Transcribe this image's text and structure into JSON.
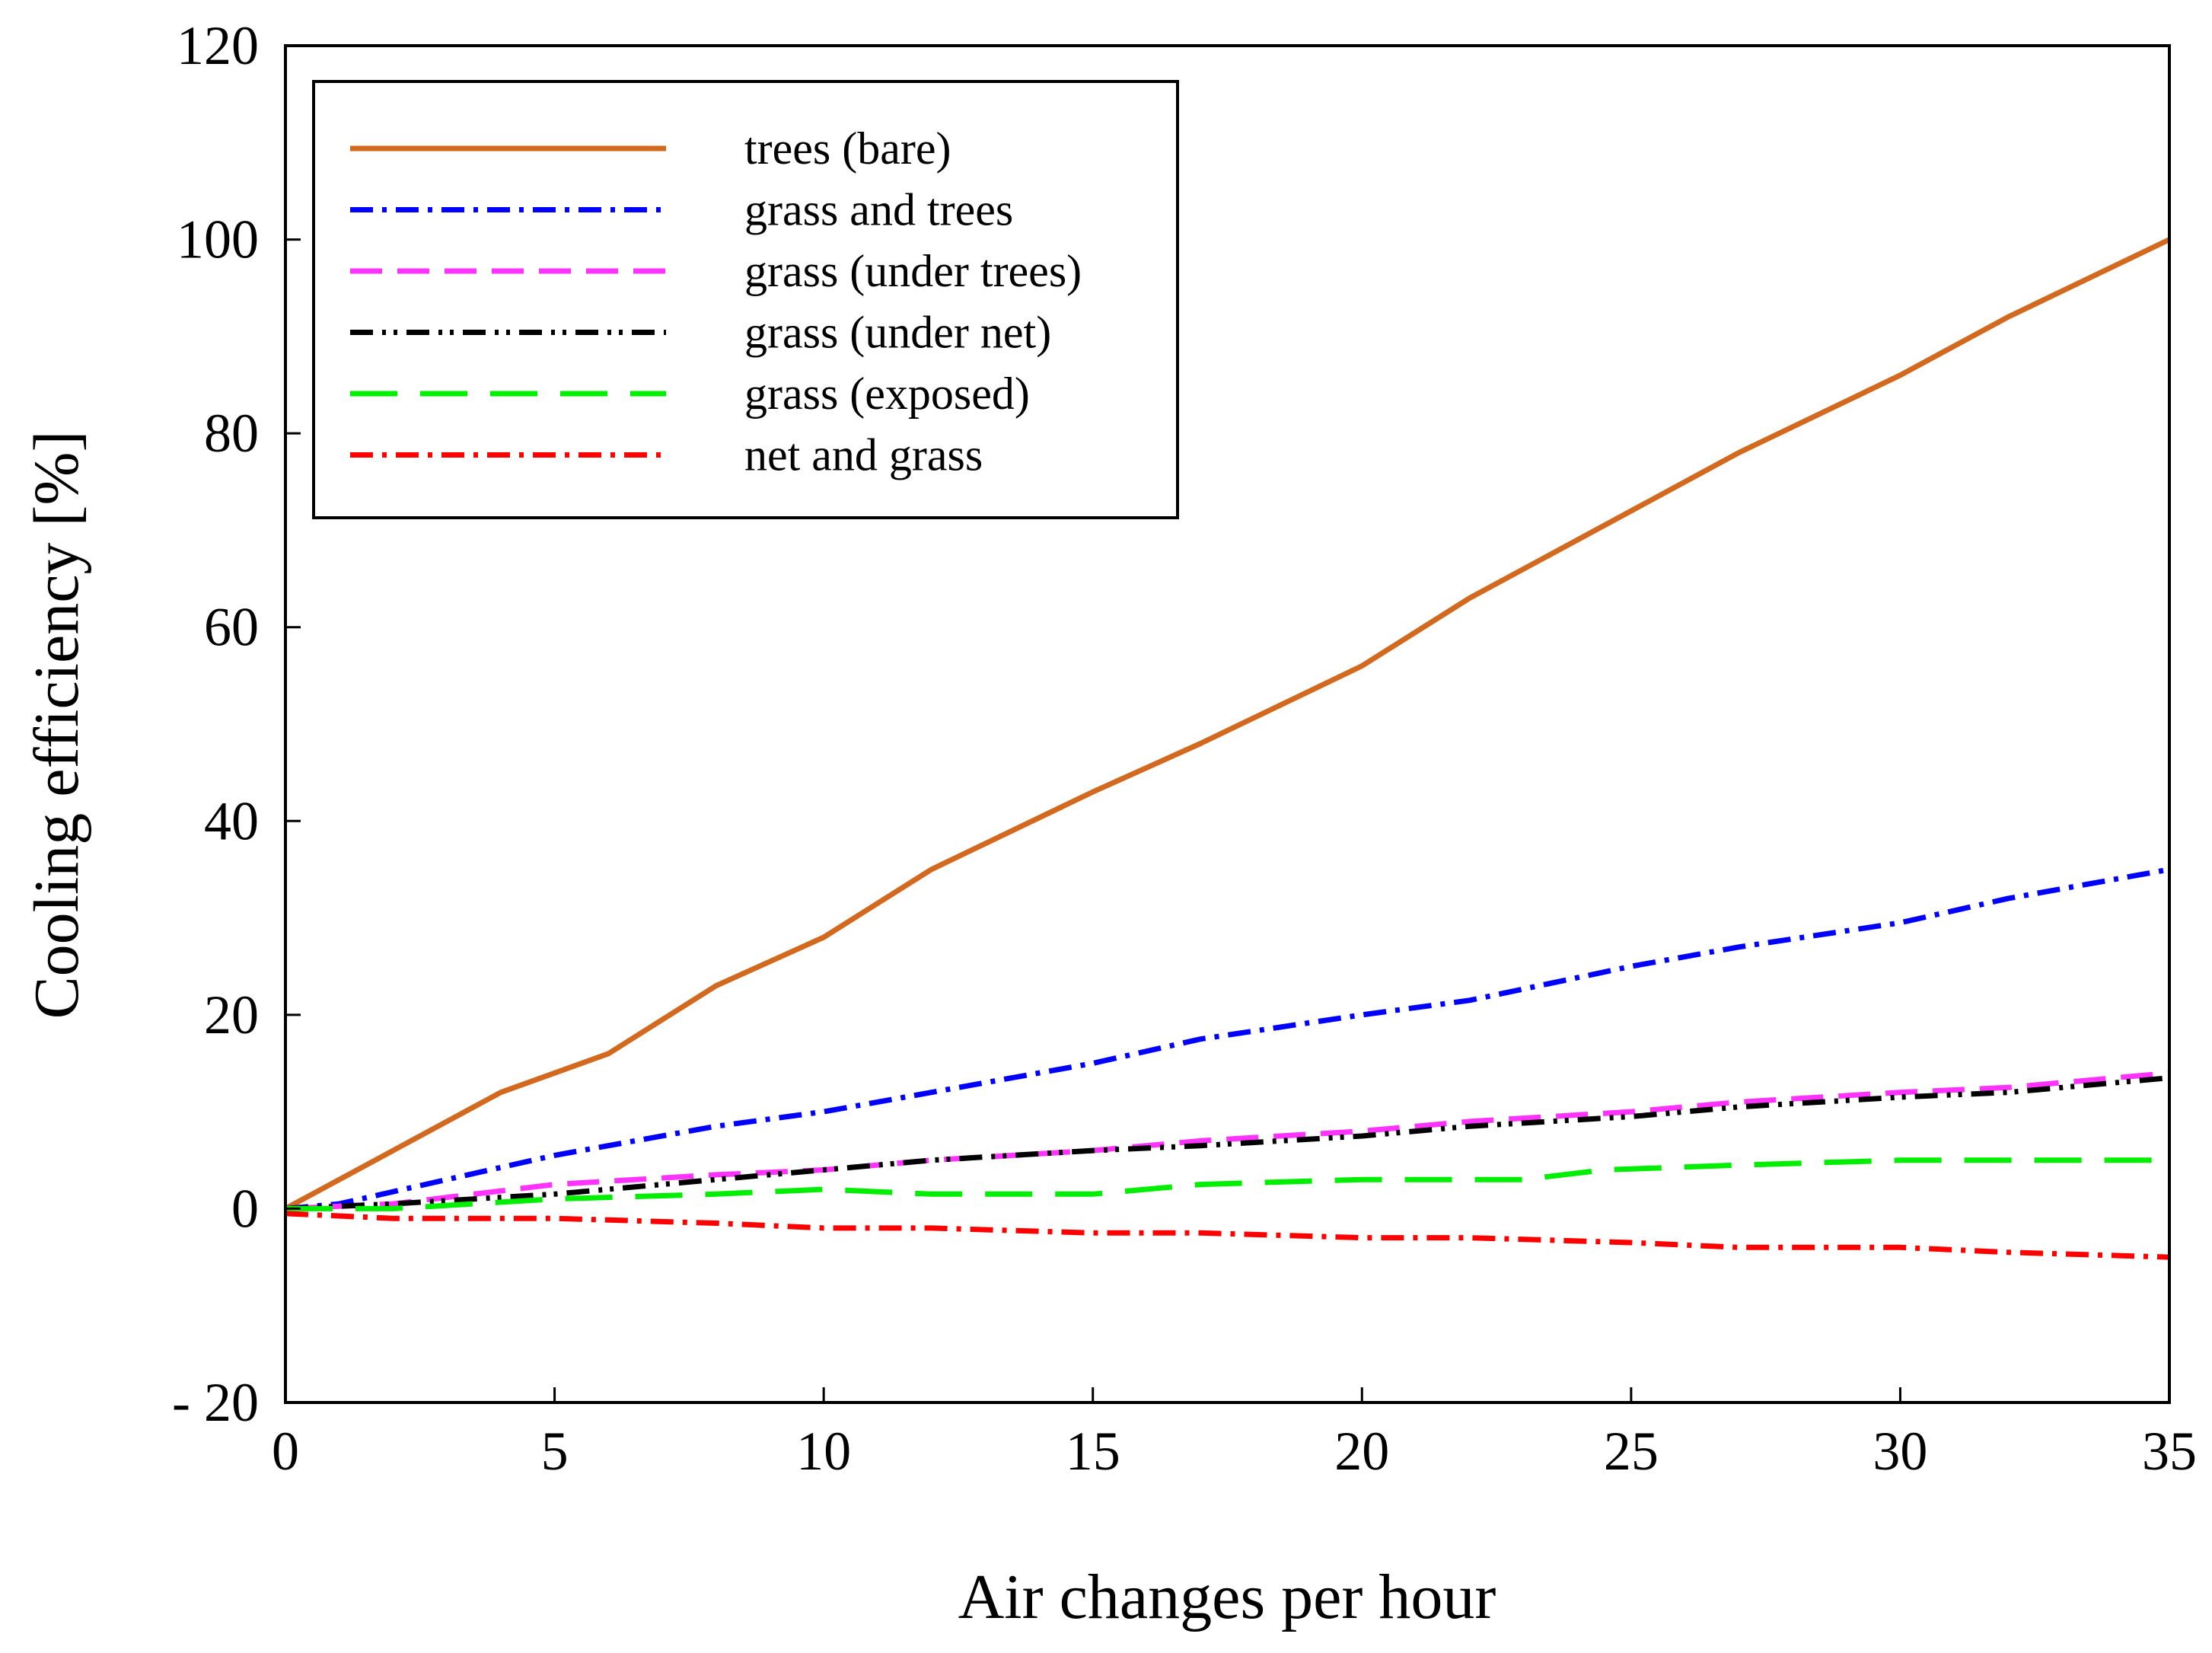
{
  "chart_data": {
    "type": "line",
    "title": "",
    "xlabel": "Air changes per hour",
    "ylabel": "Cooling efficiency [%]",
    "xlim": [
      0,
      35
    ],
    "ylim": [
      -20,
      120
    ],
    "xticks": [
      0,
      5,
      10,
      15,
      20,
      25,
      30,
      35
    ],
    "yticks": [
      -20,
      0,
      20,
      40,
      60,
      80,
      100,
      120
    ],
    "xtick_labels": [
      "0",
      "5",
      "10",
      "15",
      "20",
      "25",
      "30",
      "35"
    ],
    "ytick_labels": [
      "- 20",
      "0",
      "20",
      "40",
      "60",
      "80",
      "100",
      "120"
    ],
    "grid": false,
    "legend_position": "top-left",
    "series": [
      {
        "name": "trees (bare)",
        "color": "#D2691E",
        "style": "solid",
        "x": [
          0,
          2,
          4,
          6,
          8,
          10,
          12,
          15,
          17,
          20,
          22,
          25,
          27,
          30,
          32,
          35
        ],
        "y": [
          0,
          6,
          12,
          16,
          23,
          28,
          35,
          43,
          48,
          56,
          63,
          72,
          78,
          86,
          92,
          100
        ]
      },
      {
        "name": "grass and trees",
        "color": "#0000FF",
        "style": "dashdot",
        "x": [
          0,
          1,
          3,
          5,
          8,
          10,
          12,
          15,
          17,
          20,
          22,
          25,
          27,
          30,
          32,
          35
        ],
        "y": [
          0,
          0.5,
          3,
          5.5,
          8.5,
          10,
          12,
          15,
          17.5,
          20,
          21.5,
          25,
          27,
          29.5,
          32,
          35
        ]
      },
      {
        "name": "grass (under trees)",
        "color": "#FF33FF",
        "style": "dashed",
        "x": [
          0,
          2,
          5,
          8,
          10,
          12,
          15,
          17,
          20,
          22,
          25,
          27,
          30,
          32,
          35
        ],
        "y": [
          0,
          0.5,
          2.5,
          3.5,
          4,
          5,
          6,
          7,
          8,
          9,
          10,
          11,
          12,
          12.5,
          14
        ]
      },
      {
        "name": "grass (under net)",
        "color": "#000000",
        "style": "dashdotdot",
        "x": [
          0,
          2,
          5,
          8,
          10,
          12,
          15,
          17,
          20,
          22,
          25,
          27,
          30,
          32,
          35
        ],
        "y": [
          0,
          0.5,
          1.5,
          3,
          4,
          5,
          6,
          6.5,
          7.5,
          8.5,
          9.5,
          10.5,
          11.5,
          12,
          13.5
        ]
      },
      {
        "name": "grass (exposed)",
        "color": "#00EE00",
        "style": "longdash",
        "x": [
          0,
          2,
          5,
          8,
          10,
          12,
          15,
          17,
          20,
          23,
          24.5,
          27,
          30,
          35
        ],
        "y": [
          0,
          0,
          1,
          1.5,
          2,
          1.5,
          1.5,
          2.5,
          3,
          3,
          4,
          4.5,
          5,
          5
        ]
      },
      {
        "name": "net and grass",
        "color": "#FF0000",
        "style": "dashdot",
        "x": [
          0,
          2,
          5,
          8,
          10,
          12,
          15,
          17,
          20,
          22,
          25,
          27,
          30,
          32,
          35
        ],
        "y": [
          -0.5,
          -1,
          -1,
          -1.5,
          -2,
          -2,
          -2.5,
          -2.5,
          -3,
          -3,
          -3.5,
          -4,
          -4,
          -4.5,
          -5
        ]
      }
    ]
  }
}
